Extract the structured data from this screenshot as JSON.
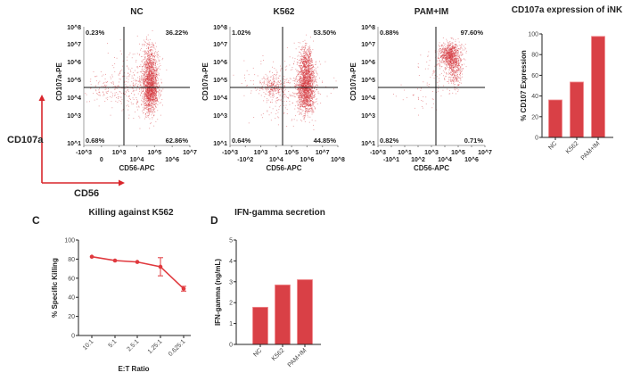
{
  "colors": {
    "bar": "#d94046",
    "bar_edge": "#f08a8e",
    "dot": "#d63a40",
    "line": "#e0393e",
    "axis": "#222222"
  },
  "legend_arrows": {
    "y_label": "CD107a",
    "x_label": "CD56",
    "color": "#d9262c"
  },
  "chart_data": [
    {
      "type": "scatter",
      "title": "NC",
      "xlabel": "CD56-APC",
      "ylabel": "CD107a-PE",
      "y_ticks": [
        "10^8",
        "10^7",
        "10^6",
        "10^5",
        "10^4",
        "10^3",
        "10^1"
      ],
      "x_ticks": [
        "-10^3",
        "0",
        "10^3",
        "10^4",
        "10^5",
        "10^6",
        "10^7"
      ],
      "quadrants": {
        "upper_left": "0.23%",
        "upper_right": "36.22%",
        "lower_left": "0.68%",
        "lower_right": "62.86%"
      }
    },
    {
      "type": "scatter",
      "title": "K562",
      "xlabel": "CD56-APC",
      "ylabel": "CD107a-PE",
      "y_ticks": [
        "10^8",
        "10^7",
        "10^6",
        "10^5",
        "10^4",
        "10^3",
        "10^1"
      ],
      "x_ticks": [
        "-10^3",
        "-10^2",
        "10^3",
        "10^4",
        "10^5",
        "10^6",
        "10^7",
        "10^8"
      ],
      "quadrants": {
        "upper_left": "1.02%",
        "upper_right": "53.50%",
        "lower_left": "0.64%",
        "lower_right": "44.85%"
      }
    },
    {
      "type": "scatter",
      "title": "PAM+IM",
      "xlabel": "CD56-APC",
      "ylabel": "CD107a-PE",
      "y_ticks": [
        "10^8",
        "10^7",
        "10^6",
        "10^5",
        "10^4",
        "10^3",
        "10^1"
      ],
      "x_ticks": [
        "-10^3",
        "-10^1",
        "10^1",
        "10^2",
        "10^3",
        "10^4",
        "10^5",
        "10^6",
        "10^7"
      ],
      "quadrants": {
        "upper_left": "0.88%",
        "upper_right": "97.60%",
        "lower_left": "0.82%",
        "lower_right": "0.71%"
      }
    },
    {
      "type": "bar",
      "title": "CD107a expression of iNK",
      "xlabel": "",
      "ylabel": "% CD107 Expression",
      "categories": [
        "NC",
        "K562",
        "PAM+IM"
      ],
      "values": [
        36.2,
        53.5,
        97.6
      ],
      "ylim": [
        0,
        100
      ],
      "y_ticks": [
        0,
        20,
        40,
        60,
        80,
        100
      ]
    },
    {
      "type": "line",
      "panel_label": "C",
      "title": "Killing against K562",
      "xlabel": "E:T Ratio",
      "ylabel": "% Specific Killing",
      "categories": [
        "10:1",
        "5:1",
        "2.5:1",
        "1.25:1",
        "0.625:1"
      ],
      "values": [
        82.5,
        78.5,
        77,
        72,
        49
      ],
      "error": [
        1,
        1,
        1,
        9.5,
        2.5
      ],
      "ylim": [
        0,
        100
      ],
      "y_ticks": [
        0,
        20,
        40,
        60,
        80,
        100
      ]
    },
    {
      "type": "bar",
      "panel_label": "D",
      "title": "IFN-gamma secretion",
      "xlabel": "",
      "ylabel": "IFN-gamma (ng/mL)",
      "categories": [
        "NC",
        "K562",
        "PAM+IM"
      ],
      "values": [
        1.78,
        2.85,
        3.1
      ],
      "ylim": [
        0,
        5
      ],
      "y_ticks": [
        0,
        1,
        2,
        3,
        4,
        5
      ]
    }
  ]
}
